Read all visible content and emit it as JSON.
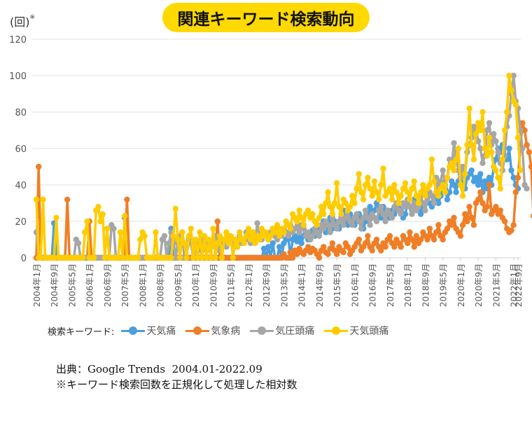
{
  "header": {
    "title": "関連キーワード検索動向",
    "unit_label": "(回)",
    "unit_note_mark": "※"
  },
  "legend": {
    "lead": "検索キーワード:"
  },
  "footer": {
    "source": "出典：Google Trends  2004.01-2022.09",
    "note": "※キーワード検索回数を正規化して処理した相対数"
  },
  "chart_data": {
    "type": "line",
    "title": "関連キーワード検索動向",
    "xlabel": "",
    "ylabel": "(回)※",
    "ylim": [
      0,
      120
    ],
    "yticks": [
      0,
      20,
      40,
      60,
      80,
      100,
      120
    ],
    "grid": true,
    "legend_position": "bottom",
    "x_start": "2004-01",
    "x_end": "2022-09",
    "x_interval": "monthly",
    "xtick_labels": [
      "2004年1月",
      "2004年9月",
      "2005年5月",
      "2006年1月",
      "2006年9月",
      "2007年5月",
      "2008年1月",
      "2008年9月",
      "2009年5月",
      "2010年1月",
      "2010年9月",
      "2011年5月",
      "2012年1月",
      "2012年9月",
      "2013年5月",
      "2014年1月",
      "2014年9月",
      "2015年5月",
      "2016年1月",
      "2016年9月",
      "2017年5月",
      "2018年1月",
      "2018年9月",
      "2019年5月",
      "2020年1月",
      "2020年9月",
      "2021年5月",
      "2022年1月",
      "2022年9月"
    ],
    "series": [
      {
        "name": "天気痛",
        "color": "#4A9FE0",
        "values": [
          0,
          0,
          0,
          0,
          0,
          0,
          0,
          0,
          19,
          0,
          0,
          0,
          0,
          0,
          0,
          0,
          0,
          0,
          0,
          0,
          0,
          0,
          0,
          0,
          0,
          0,
          0,
          0,
          0,
          0,
          0,
          0,
          0,
          0,
          0,
          0,
          0,
          0,
          0,
          0,
          22,
          0,
          0,
          0,
          0,
          0,
          0,
          0,
          0,
          0,
          0,
          0,
          0,
          0,
          0,
          0,
          0,
          0,
          0,
          0,
          0,
          16,
          0,
          0,
          0,
          0,
          14,
          0,
          0,
          0,
          0,
          0,
          0,
          0,
          8,
          0,
          0,
          0,
          0,
          0,
          0,
          0,
          0,
          0,
          0,
          0,
          0,
          0,
          0,
          0,
          0,
          0,
          0,
          0,
          0,
          0,
          0,
          0,
          0,
          0,
          0,
          0,
          0,
          5,
          0,
          6,
          0,
          8,
          0,
          0,
          6,
          0,
          8,
          10,
          12,
          0,
          10,
          12,
          9,
          11,
          8,
          12,
          14,
          10,
          13,
          15,
          12,
          18,
          14,
          16,
          20,
          14,
          18,
          22,
          16,
          20,
          18,
          16,
          22,
          26,
          20,
          18,
          24,
          22,
          18,
          20,
          24,
          22,
          16,
          20,
          24,
          28,
          22,
          26,
          30,
          26,
          22,
          28,
          24,
          26,
          22,
          26,
          24,
          28,
          30,
          26,
          22,
          24,
          30,
          28,
          26,
          32,
          28,
          30,
          24,
          28,
          30,
          34,
          30,
          28,
          32,
          36,
          30,
          34,
          40,
          38,
          32,
          36,
          42,
          40,
          36,
          42,
          46,
          40,
          38,
          44,
          46,
          48,
          42,
          44,
          40,
          46,
          36,
          42,
          38,
          44,
          40,
          50,
          54,
          60,
          58,
          62,
          56,
          54,
          60,
          48,
          44,
          40,
          38
        ]
      },
      {
        "name": "気象病",
        "color": "#F07E26",
        "values": [
          0,
          50,
          0,
          0,
          0,
          0,
          0,
          0,
          0,
          0,
          0,
          0,
          0,
          0,
          32,
          0,
          0,
          0,
          0,
          0,
          0,
          0,
          0,
          0,
          20,
          0,
          0,
          0,
          0,
          0,
          0,
          0,
          0,
          0,
          0,
          0,
          0,
          0,
          0,
          0,
          0,
          32,
          0,
          0,
          0,
          0,
          0,
          0,
          0,
          0,
          0,
          0,
          0,
          0,
          0,
          0,
          0,
          0,
          0,
          0,
          0,
          0,
          0,
          0,
          0,
          0,
          0,
          0,
          0,
          0,
          0,
          0,
          0,
          0,
          0,
          0,
          0,
          0,
          0,
          0,
          0,
          0,
          20,
          0,
          0,
          0,
          0,
          0,
          0,
          0,
          0,
          0,
          0,
          0,
          0,
          0,
          0,
          0,
          0,
          0,
          0,
          0,
          0,
          0,
          0,
          0,
          0,
          0,
          0,
          0,
          0,
          0,
          2,
          0,
          0,
          3,
          0,
          4,
          2,
          5,
          3,
          2,
          4,
          6,
          3,
          5,
          4,
          2,
          0,
          4,
          6,
          3,
          2,
          5,
          8,
          4,
          2,
          6,
          4,
          3,
          8,
          6,
          2,
          4,
          6,
          8,
          10,
          4,
          6,
          8,
          12,
          6,
          4,
          8,
          10,
          6,
          4,
          8,
          6,
          10,
          12,
          8,
          6,
          10,
          8,
          6,
          12,
          10,
          8,
          14,
          10,
          6,
          12,
          8,
          10,
          14,
          12,
          10,
          16,
          12,
          10,
          14,
          18,
          12,
          10,
          14,
          16,
          20,
          18,
          22,
          16,
          14,
          12,
          18,
          24,
          20,
          28,
          22,
          18,
          30,
          32,
          36,
          30,
          26,
          28,
          40,
          24,
          26,
          28,
          24,
          26,
          22,
          20,
          16,
          14,
          15,
          18,
          36,
          44,
          60,
          74,
          70,
          62,
          58,
          50,
          23,
          17
        ]
      },
      {
        "name": "気圧頭痛",
        "color": "#A6A6A6",
        "values": [
          14,
          0,
          0,
          0,
          0,
          0,
          0,
          0,
          0,
          0,
          0,
          0,
          0,
          0,
          0,
          0,
          0,
          0,
          10,
          8,
          0,
          0,
          0,
          0,
          0,
          0,
          0,
          0,
          0,
          0,
          0,
          0,
          0,
          0,
          18,
          16,
          0,
          0,
          0,
          0,
          0,
          0,
          0,
          0,
          0,
          0,
          0,
          0,
          0,
          0,
          0,
          0,
          0,
          0,
          0,
          0,
          0,
          10,
          12,
          0,
          8,
          14,
          10,
          0,
          8,
          12,
          14,
          0,
          6,
          10,
          8,
          0,
          4,
          6,
          8,
          10,
          6,
          4,
          8,
          6,
          10,
          12,
          6,
          4,
          10,
          8,
          6,
          12,
          10,
          8,
          6,
          10,
          12,
          8,
          10,
          14,
          10,
          8,
          12,
          10,
          19,
          12,
          10,
          14,
          12,
          10,
          14,
          16,
          12,
          10,
          14,
          12,
          16,
          14,
          12,
          18,
          14,
          16,
          20,
          14,
          18,
          16,
          12,
          14,
          10,
          12,
          16,
          14,
          12,
          18,
          16,
          20,
          18,
          14,
          22,
          18,
          16,
          20,
          24,
          18,
          22,
          26,
          20,
          18,
          22,
          24,
          20,
          16,
          22,
          26,
          22,
          18,
          24,
          22,
          20,
          26,
          28,
          24,
          20,
          26,
          24,
          22,
          28,
          30,
          26,
          24,
          30,
          28,
          32,
          28,
          24,
          30,
          26,
          28,
          34,
          30,
          26,
          32,
          36,
          34,
          30,
          44,
          38,
          42,
          48,
          40,
          44,
          54,
          50,
          63,
          56,
          48,
          44,
          50,
          46,
          58,
          62,
          66,
          72,
          70,
          64,
          60,
          52,
          56,
          70,
          74,
          62,
          68,
          64,
          58,
          52,
          48,
          56,
          72,
          78,
          90,
          100,
          86,
          82,
          70,
          60,
          40,
          38
        ]
      },
      {
        "name": "天気頭痛",
        "color": "#FFCC00",
        "values": [
          32,
          0,
          0,
          32,
          0,
          0,
          0,
          0,
          0,
          22,
          0,
          0,
          0,
          0,
          0,
          0,
          0,
          0,
          0,
          0,
          0,
          0,
          14,
          20,
          0,
          0,
          0,
          26,
          28,
          20,
          24,
          0,
          16,
          0,
          0,
          0,
          0,
          0,
          14,
          0,
          23,
          0,
          0,
          0,
          0,
          0,
          0,
          10,
          14,
          12,
          0,
          0,
          0,
          0,
          14,
          0,
          0,
          0,
          0,
          0,
          0,
          0,
          12,
          27,
          10,
          0,
          14,
          8,
          0,
          12,
          16,
          0,
          10,
          0,
          14,
          0,
          12,
          0,
          10,
          0,
          16,
          0,
          8,
          12,
          0,
          10,
          14,
          8,
          12,
          0,
          10,
          6,
          14,
          10,
          8,
          12,
          16,
          10,
          14,
          8,
          12,
          10,
          16,
          12,
          14,
          10,
          12,
          16,
          14,
          18,
          12,
          16,
          14,
          20,
          18,
          16,
          24,
          22,
          20,
          26,
          22,
          18,
          24,
          26,
          22,
          24,
          20,
          18,
          22,
          28,
          24,
          30,
          36,
          28,
          24,
          30,
          41,
          28,
          24,
          32,
          30,
          26,
          28,
          34,
          30,
          38,
          46,
          36,
          32,
          40,
          44,
          38,
          34,
          42,
          36,
          32,
          40,
          49,
          34,
          36,
          38,
          32,
          40,
          36,
          30,
          34,
          38,
          41,
          36,
          32,
          38,
          42,
          34,
          30,
          36,
          40,
          34,
          38,
          40,
          54,
          42,
          36,
          34,
          38,
          40,
          36,
          44,
          50,
          52,
          48,
          54,
          60,
          40,
          34,
          46,
          62,
          82,
          62,
          54,
          68,
          74,
          70,
          80,
          60,
          56,
          66,
          58,
          50,
          48,
          44,
          38,
          54,
          70,
          80,
          100,
          92,
          86,
          84,
          66,
          48
        ]
      }
    ]
  }
}
